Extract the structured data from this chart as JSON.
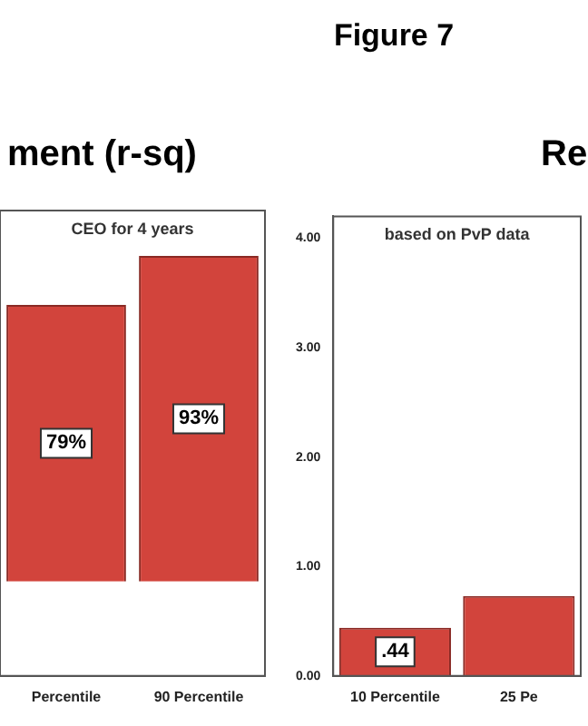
{
  "chart_data": [
    {
      "type": "other",
      "title": "Figure 7"
    },
    {
      "type": "bar",
      "title": "ment (r-sq)",
      "annotations": [
        "CEO for 4 years"
      ],
      "categories": [
        "Percentile",
        "90 Percentile"
      ],
      "values": [
        79,
        93
      ],
      "value_labels": [
        "79%",
        "93%"
      ],
      "color": "#d2443c",
      "ylim": [
        -27,
        106
      ],
      "tick_labels": "x",
      "grid": false,
      "legend": false
    },
    {
      "type": "bar",
      "title": "Re",
      "annotations": [
        "based on PvP data"
      ],
      "categories": [
        "10 Percentile",
        "25 Pe"
      ],
      "values": [
        0.44,
        0.73
      ],
      "value_labels": [
        ".44",
        null
      ],
      "color": "#d2443c",
      "ylim": [
        0,
        4.2
      ],
      "yticks": [
        {
          "value": 0,
          "label": "0.00"
        },
        {
          "value": 1,
          "label": "1.00"
        },
        {
          "value": 2,
          "label": "2.00"
        },
        {
          "value": 3,
          "label": "3.00"
        },
        {
          "value": 4,
          "label": "4.00"
        }
      ],
      "grid": false,
      "legend": false
    }
  ]
}
